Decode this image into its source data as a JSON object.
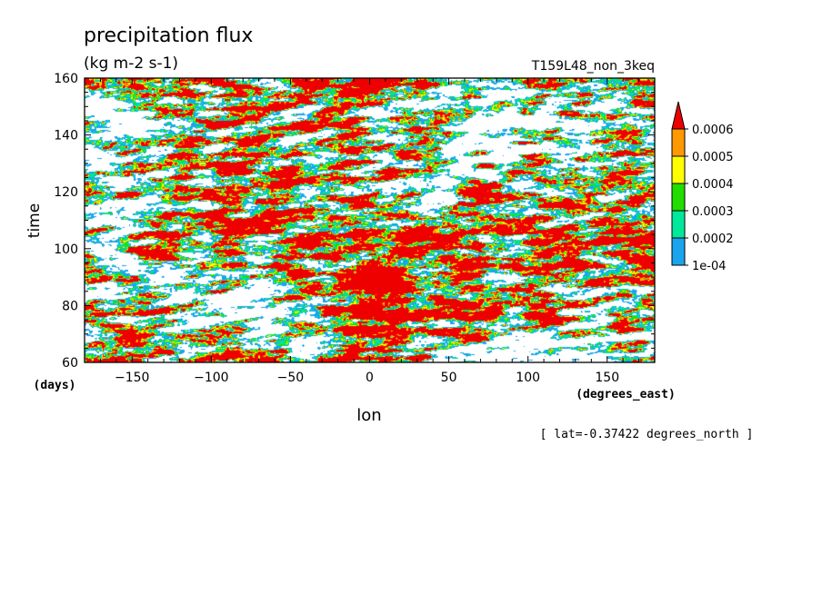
{
  "chart_data": {
    "type": "heatmap",
    "title": "precipitation flux",
    "units": "(kg m-2 s-1)",
    "run_label": "T159L48_non_3keq",
    "xlabel": "lon",
    "xunits": "(degrees_east)",
    "ylabel": "time",
    "yunits": "(days)",
    "xlim": [
      -180,
      180
    ],
    "ylim": [
      60,
      160
    ],
    "xticks": [
      -150,
      -100,
      -50,
      0,
      50,
      100,
      150
    ],
    "yticks": [
      60,
      80,
      100,
      120,
      140,
      160
    ],
    "footer": "[ lat=-0.37422 degrees_north ]",
    "colorbar": {
      "levels": [
        "1e-04",
        "0.0002",
        "0.0003",
        "0.0004",
        "0.0005",
        "0.0006"
      ],
      "colors": [
        "#ffffff",
        "#1aa4ee",
        "#00e89a",
        "#22dd00",
        "#ffff00",
        "#ff9900",
        "#ee0000"
      ],
      "extend": "max"
    },
    "description_of_field": "Hovmoller diagram of equatorial precipitation flux; eastward/westward propagating streaks with enhanced values near 0 degrees longitude"
  }
}
